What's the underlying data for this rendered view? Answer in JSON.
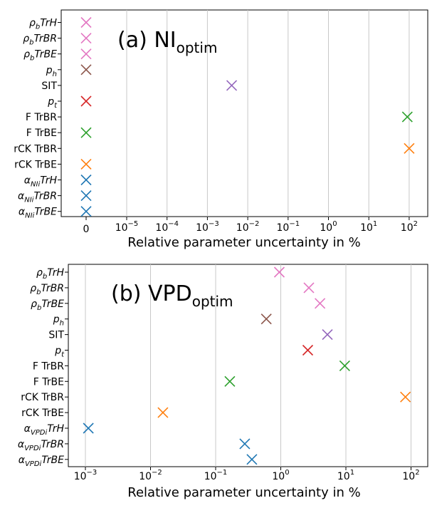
{
  "chart_data": [
    {
      "type": "scatter",
      "title": "(a) NI",
      "title_subscript": "optim",
      "xlabel": "Relative parameter uncertainty in %",
      "xscale": "log (with zero position)",
      "xlim": [
        1e-07,
        300
      ],
      "xtick_labels": [
        {
          "text": "0",
          "base": "",
          "exp": ""
        },
        {
          "text": "",
          "base": "10",
          "exp": "−5"
        },
        {
          "text": "",
          "base": "10",
          "exp": "−4"
        },
        {
          "text": "",
          "base": "10",
          "exp": "−3"
        },
        {
          "text": "",
          "base": "10",
          "exp": "−2"
        },
        {
          "text": "",
          "base": "10",
          "exp": "−1"
        },
        {
          "text": "",
          "base": "10",
          "exp": "0"
        },
        {
          "text": "",
          "base": "10",
          "exp": "1"
        },
        {
          "text": "",
          "base": "10",
          "exp": "2"
        }
      ],
      "points": [
        {
          "label": "ρbTrH",
          "main": "ρ",
          "sub": "b",
          "rest": "TrH",
          "italic": true,
          "value": 0,
          "color": "#e377c2"
        },
        {
          "label": "ρbTrBR",
          "main": "ρ",
          "sub": "b",
          "rest": "TrBR",
          "italic": true,
          "value": 0,
          "color": "#e377c2"
        },
        {
          "label": "ρbTrBE",
          "main": "ρ",
          "sub": "b",
          "rest": "TrBE",
          "italic": true,
          "value": 0,
          "color": "#e377c2"
        },
        {
          "label": "ph",
          "main": "p",
          "sub": "h",
          "rest": "",
          "italic": true,
          "value": 0,
          "color": "#8c564b"
        },
        {
          "label": "SIT",
          "main": "SIT",
          "sub": "",
          "rest": "",
          "italic": false,
          "value": 0.004,
          "color": "#9467bd"
        },
        {
          "label": "pt",
          "main": "p",
          "sub": "t",
          "rest": "",
          "italic": true,
          "value": 0,
          "color": "#d62728"
        },
        {
          "label": "F TrBR",
          "main": "F TrBR",
          "sub": "",
          "rest": "",
          "italic": false,
          "value": 90,
          "color": "#2ca02c"
        },
        {
          "label": "F TrBE",
          "main": "F TrBE",
          "sub": "",
          "rest": "",
          "italic": false,
          "value": 0,
          "color": "#2ca02c"
        },
        {
          "label": "rCK TrBR",
          "main": "rCK TrBR",
          "sub": "",
          "rest": "",
          "italic": false,
          "value": 100,
          "color": "#ff7f0e"
        },
        {
          "label": "rCK TrBE",
          "main": "rCK TrBE",
          "sub": "",
          "rest": "",
          "italic": false,
          "value": 0,
          "color": "#ff7f0e"
        },
        {
          "label": "αNIiTrH",
          "main": "α",
          "sub": "NIi",
          "rest": "TrH",
          "italic": true,
          "value": 0,
          "color": "#1f77b4"
        },
        {
          "label": "αNIiTrBR",
          "main": "α",
          "sub": "NIi",
          "rest": "TrBR",
          "italic": true,
          "value": 0,
          "color": "#1f77b4"
        },
        {
          "label": "αNIiTrBE",
          "main": "α",
          "sub": "NIi",
          "rest": "TrBE",
          "italic": true,
          "value": 0,
          "color": "#1f77b4"
        }
      ]
    },
    {
      "type": "scatter",
      "title": "(b) VPD",
      "title_subscript": "optim",
      "xlabel": "Relative parameter uncertainty in %",
      "xscale": "log",
      "xlim": [
        0.0005,
        150
      ],
      "xtick_labels": [
        {
          "text": "",
          "base": "10",
          "exp": "−3"
        },
        {
          "text": "",
          "base": "10",
          "exp": "−2"
        },
        {
          "text": "",
          "base": "10",
          "exp": "−1"
        },
        {
          "text": "",
          "base": "10",
          "exp": "0"
        },
        {
          "text": "",
          "base": "10",
          "exp": "1"
        },
        {
          "text": "",
          "base": "10",
          "exp": "2"
        }
      ],
      "points": [
        {
          "label": "ρbTrH",
          "main": "ρ",
          "sub": "b",
          "rest": "TrH",
          "italic": true,
          "value": 0.95,
          "color": "#e377c2"
        },
        {
          "label": "ρbTrBR",
          "main": "ρ",
          "sub": "b",
          "rest": "TrBR",
          "italic": true,
          "value": 2.7,
          "color": "#e377c2"
        },
        {
          "label": "ρbTrBE",
          "main": "ρ",
          "sub": "b",
          "rest": "TrBE",
          "italic": true,
          "value": 4.0,
          "color": "#e377c2"
        },
        {
          "label": "ph",
          "main": "p",
          "sub": "h",
          "rest": "",
          "italic": true,
          "value": 0.6,
          "color": "#8c564b"
        },
        {
          "label": "SIT",
          "main": "SIT",
          "sub": "",
          "rest": "",
          "italic": false,
          "value": 5.2,
          "color": "#9467bd"
        },
        {
          "label": "pt",
          "main": "p",
          "sub": "t",
          "rest": "",
          "italic": true,
          "value": 2.6,
          "color": "#d62728"
        },
        {
          "label": "F TrBR",
          "main": "F TrBR",
          "sub": "",
          "rest": "",
          "italic": false,
          "value": 9.6,
          "color": "#2ca02c"
        },
        {
          "label": "F TrBE",
          "main": "F TrBE",
          "sub": "",
          "rest": "",
          "italic": false,
          "value": 0.165,
          "color": "#2ca02c"
        },
        {
          "label": "rCK TrBR",
          "main": "rCK TrBR",
          "sub": "",
          "rest": "",
          "italic": false,
          "value": 82,
          "color": "#ff7f0e"
        },
        {
          "label": "rCK TrBE",
          "main": "rCK TrBE",
          "sub": "",
          "rest": "",
          "italic": false,
          "value": 0.0155,
          "color": "#ff7f0e"
        },
        {
          "label": "αVPDiTrH",
          "main": "α",
          "sub": "VPDi",
          "rest": "TrH",
          "italic": true,
          "value": 0.00111,
          "color": "#1f77b4"
        },
        {
          "label": "αVPDiTrBR",
          "main": "α",
          "sub": "VPDi",
          "rest": "TrBR",
          "italic": true,
          "value": 0.28,
          "color": "#1f77b4"
        },
        {
          "label": "αVPDiTrBE",
          "main": "α",
          "sub": "VPDi",
          "rest": "TrBE",
          "italic": true,
          "value": 0.36,
          "color": "#1f77b4"
        }
      ]
    }
  ]
}
